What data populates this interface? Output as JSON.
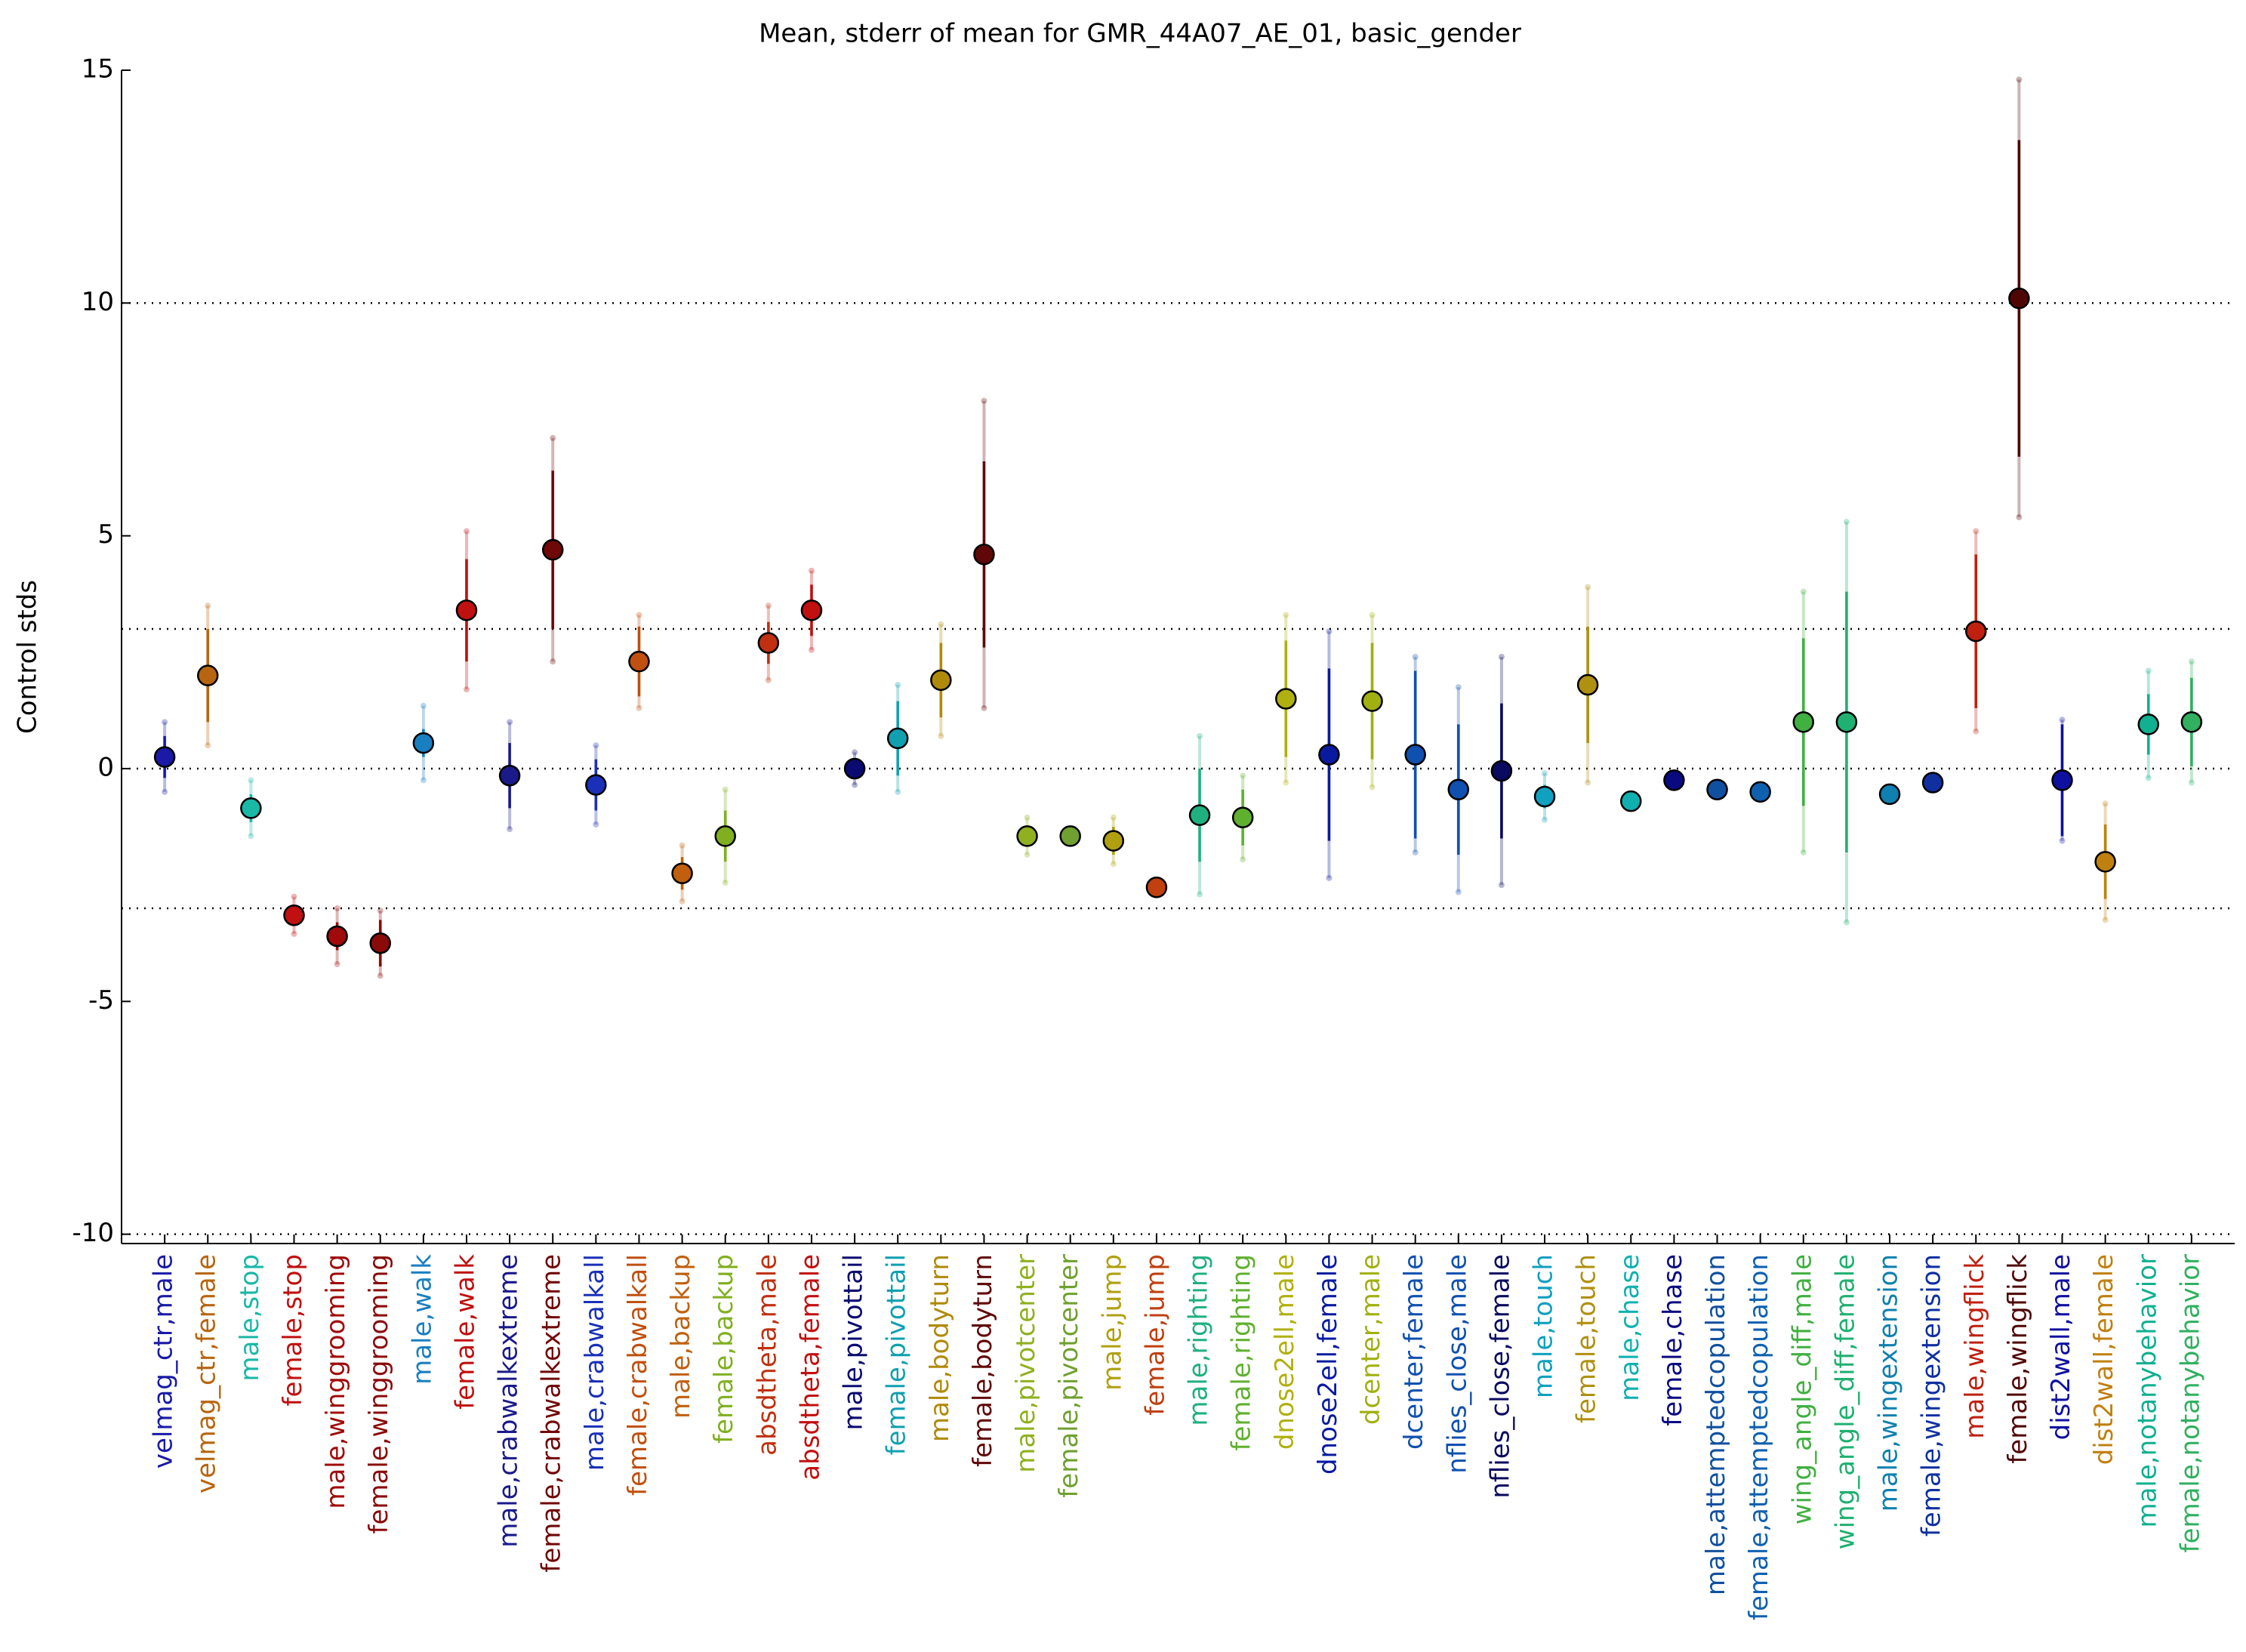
{
  "chart_data": {
    "type": "errorbar",
    "title": "Mean, stderr of mean for GMR_44A07_AE_01, basic_gender",
    "y_label": "Control stds",
    "categories": [
      "velmag_ctr,male",
      "velmag_ctr,female",
      "male,stop",
      "female,stop",
      "male,winggrooming",
      "female,winggrooming",
      "male,walk",
      "female,walk",
      "male,crabwalkextreme",
      "female,crabwalkextreme",
      "male,crabwalkall",
      "female,crabwalkall",
      "male,backup",
      "female,backup",
      "absdtheta,male",
      "absdtheta,female",
      "male,pivottail",
      "female,pivottail",
      "male,bodyturn",
      "female,bodyturn",
      "male,pivotcenter",
      "female,pivotcenter",
      "male,jump",
      "female,jump",
      "male,righting",
      "female,righting",
      "dnose2ell,male",
      "dnose2ell,female",
      "dcenter,male",
      "dcenter,female",
      "nflies_close,male",
      "nflies_close,female",
      "male,touch",
      "female,touch",
      "male,chase",
      "female,chase",
      "male,attemptedcopulation",
      "female,attemptedcopulation",
      "wing_angle_diff,male",
      "wing_angle_diff,female",
      "male,wingextension",
      "female,wingextension",
      "male,wingflick",
      "female,wingflick",
      "dist2wall,male",
      "dist2wall,female",
      "male,notanybehavior",
      "female,notanybehavior"
    ],
    "values": [
      0.25,
      2.0,
      -0.85,
      -3.15,
      -3.6,
      -3.75,
      0.55,
      3.4,
      -0.15,
      4.7,
      -0.35,
      2.3,
      -2.25,
      -1.45,
      2.7,
      3.4,
      0.0,
      0.65,
      1.9,
      4.6,
      -1.45,
      -1.45,
      -1.55,
      -2.55,
      -1.0,
      -1.05,
      1.5,
      0.3,
      1.45,
      0.3,
      -0.45,
      -0.05,
      -0.6,
      1.8,
      -0.7,
      -0.25,
      -0.45,
      -0.5,
      1.0,
      1.0,
      -0.55,
      -0.3,
      2.95,
      10.1,
      -0.25,
      -2.0,
      0.95,
      1.0
    ],
    "errors": [
      0.45,
      1.0,
      0.3,
      0.2,
      0.3,
      0.5,
      0.3,
      1.1,
      0.7,
      1.7,
      0.55,
      0.75,
      0.35,
      0.55,
      0.45,
      0.55,
      0.15,
      0.8,
      0.8,
      2.0,
      0.2,
      0.1,
      0.3,
      0.05,
      1.0,
      0.6,
      1.25,
      1.85,
      1.25,
      1.8,
      1.4,
      1.45,
      0.25,
      1.25,
      0.05,
      0.1,
      0.05,
      0.05,
      1.8,
      2.8,
      0.05,
      0.05,
      1.65,
      3.4,
      1.2,
      0.8,
      0.65,
      0.95
    ],
    "spread": [
      0.75,
      1.5,
      0.6,
      0.4,
      0.6,
      0.7,
      0.8,
      1.7,
      1.15,
      2.4,
      0.85,
      1.0,
      0.6,
      1.0,
      0.8,
      0.85,
      0.35,
      1.15,
      1.2,
      3.3,
      0.4,
      0.15,
      0.5,
      0.1,
      1.7,
      0.9,
      1.8,
      2.65,
      1.85,
      2.1,
      2.2,
      2.45,
      0.5,
      2.1,
      0.1,
      0.15,
      0.1,
      0.1,
      2.8,
      4.3,
      0.1,
      0.1,
      2.15,
      4.7,
      1.3,
      1.25,
      1.15,
      1.3
    ],
    "colors": [
      "#1a1aa6",
      "#b8650f",
      "#1ab8a6",
      "#c0100f",
      "#a00a0a",
      "#8a0a0a",
      "#1a7fc0",
      "#c01010",
      "#1a1a8a",
      "#700808",
      "#1a30b8",
      "#c0500f",
      "#c0600f",
      "#80b020",
      "#c03010",
      "#c01010",
      "#0a0a70",
      "#10a0b0",
      "#b08a0a",
      "#600808",
      "#90b020",
      "#70a030",
      "#b0a010",
      "#c04010",
      "#20b080",
      "#60b030",
      "#b0b010",
      "#0a1aa0",
      "#a0b010",
      "#1050b0",
      "#1050b0",
      "#0a0a60",
      "#10a0c0",
      "#b09010",
      "#10b0b0",
      "#0a0a80",
      "#1050a0",
      "#1060b0",
      "#40b040",
      "#20b070",
      "#1080b0",
      "#1030a0",
      "#c02010",
      "#500505",
      "#1010a0",
      "#c08010",
      "#10b090",
      "#30b060"
    ],
    "ylim": [
      -10.2,
      15
    ],
    "yticks": [
      -10,
      -5,
      0,
      5,
      10,
      15
    ],
    "reference_lines": [
      10,
      3,
      0,
      -3,
      -10
    ]
  }
}
